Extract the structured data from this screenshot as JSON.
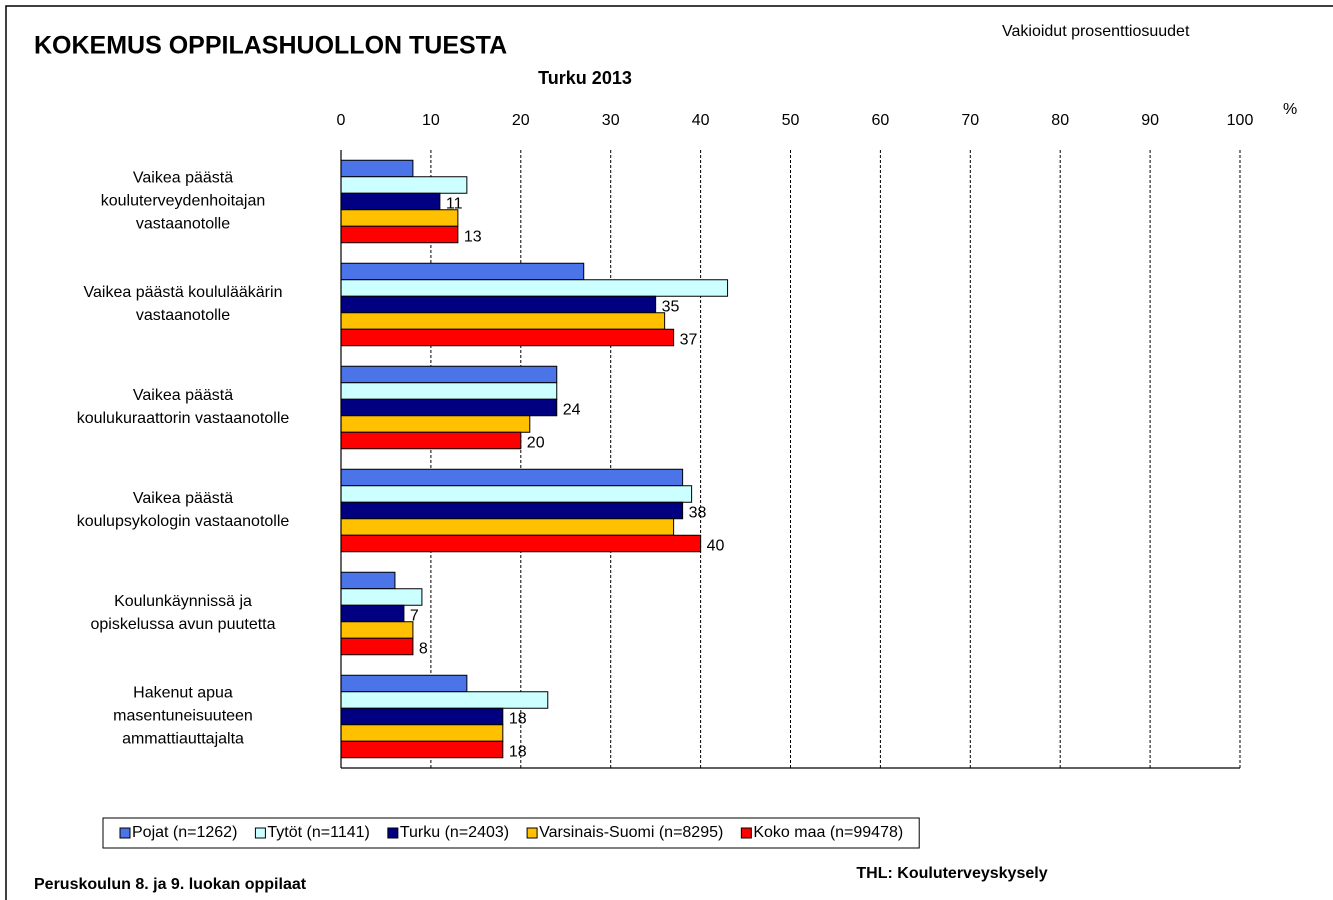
{
  "chart_data": {
    "type": "hbar",
    "title": "KOKEMUS OPPILASHUOLLON TUESTA",
    "subtitle": "Turku 2013",
    "note": "Vakioidut prosenttiosuudet",
    "x_unit": "%",
    "footer_left": "Peruskoulun 8. ja 9. luokan oppilaat",
    "footer_right": "THL: Kouluterveyskysely",
    "categories": [
      "Vaikea päästä\nkouluterveydenhoitajan\nvastaanotolle",
      "Vaikea päästä koululääkärin\nvastaanotolle",
      "Vaikea päästä\nkoulukuraattorin vastaanotolle",
      "Vaikea päästä\nkoulupsykologin vastaanotolle",
      "Koulunkäynnissä ja\nopiskelussa avun puutetta",
      "Hakenut apua\nmasentuneisuuteen\nammattiauttajalta"
    ],
    "series": [
      {
        "name": "Pojat (n=1262)",
        "color": "#4a74e8",
        "values": [
          8,
          27,
          24,
          38,
          6,
          14
        ]
      },
      {
        "name": "Tytöt (n=1141)",
        "color": "#ccffff",
        "values": [
          14,
          43,
          24,
          39,
          9,
          23
        ]
      },
      {
        "name": "Turku (n=2403)",
        "color": "#000080",
        "values": [
          11,
          35,
          24,
          38,
          7,
          18
        ],
        "data_labels": true
      },
      {
        "name": "Varsinais-Suomi (n=8295)",
        "color": "#ffc000",
        "values": [
          13,
          36,
          21,
          37,
          8,
          18
        ]
      },
      {
        "name": "Koko maa (n=99478)",
        "color": "#ff0000",
        "values": [
          13,
          37,
          20,
          40,
          8,
          18
        ],
        "data_labels": true
      }
    ],
    "xlim": [
      0,
      100
    ],
    "xticks": [
      0,
      10,
      20,
      30,
      40,
      50,
      60,
      70,
      80,
      90,
      100
    ],
    "grid": true,
    "legend": "bottom"
  }
}
